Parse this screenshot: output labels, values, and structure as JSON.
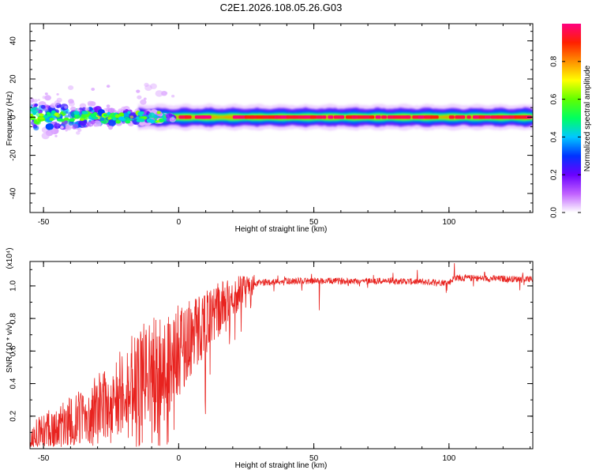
{
  "title": "C2E1.2026.108.05.26.G03",
  "chart_data": [
    {
      "id": "spectrogram",
      "type": "heatmap",
      "xlabel": "Height of straight line (km)",
      "ylabel": "Frequency (Hz)",
      "xlim": [
        -55,
        131
      ],
      "ylim": [
        -50,
        49
      ],
      "xticks": [
        -50,
        0,
        50,
        100
      ],
      "yticks": [
        -40,
        -20,
        0,
        20,
        40
      ],
      "colorbar": {
        "label": "Normalized spectral amplitude",
        "ticks": [
          "0.0",
          "0.2",
          "0.4",
          "0.6",
          "0.8"
        ],
        "range": [
          0,
          1
        ],
        "stops": [
          "#ffffff",
          "#c060ff",
          "#6a00ff",
          "#0033ff",
          "#00c8ff",
          "#00ff60",
          "#60ff00",
          "#ffff00",
          "#ff9000",
          "#ff2000",
          "#ff0080"
        ]
      },
      "band": {
        "center_frequency_hz": 0,
        "noisy_region_end_km": -10,
        "mean_amplitude": 0.85
      }
    },
    {
      "id": "snr",
      "type": "line",
      "xlabel": "Height of straight line (km)",
      "ylabel": "SNR (10 * v/v)",
      "scale_label": "(x10⁴)",
      "xlim": [
        -55,
        131
      ],
      "ylim": [
        0,
        1.15
      ],
      "xticks": [
        -50,
        0,
        50,
        100
      ],
      "yticks": [
        0.2,
        0.4,
        0.6,
        0.8,
        1.0
      ],
      "series": [
        {
          "name": "SNR",
          "color": "#e8231f",
          "trend": {
            "x": [
              -55,
              -45,
              -35,
              -25,
              -15,
              -5,
              0,
              5,
              10,
              15,
              20,
              25,
              30,
              40,
              60,
              80,
              100,
              102,
              131
            ],
            "y": [
              0.07,
              0.12,
              0.2,
              0.3,
              0.45,
              0.5,
              0.6,
              0.7,
              0.78,
              0.86,
              0.93,
              0.99,
              1.02,
              1.03,
              1.03,
              1.03,
              1.02,
              1.05,
              1.04
            ]
          },
          "features": [
            {
              "x": 102,
              "y": 1.14,
              "note": "spike"
            },
            {
              "x": -9,
              "y": 0.1,
              "note": "dip"
            },
            {
              "x": 52,
              "y": 0.85,
              "note": "dip"
            }
          ]
        }
      ]
    }
  ]
}
